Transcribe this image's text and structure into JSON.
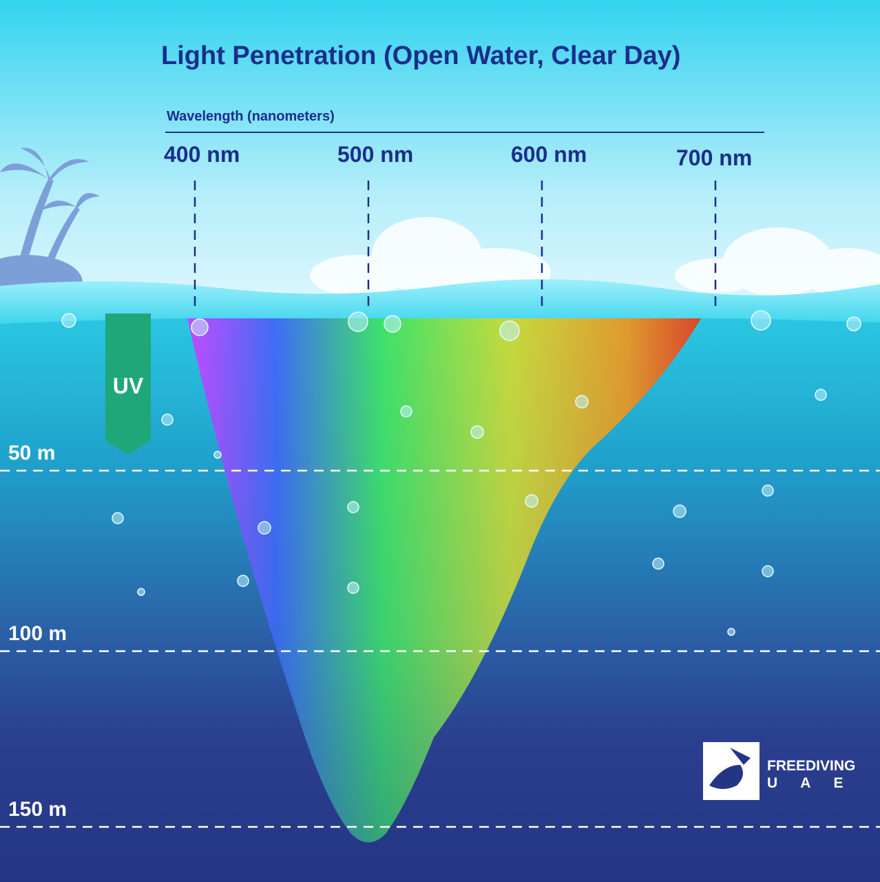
{
  "title": "Light Penetration (Open Water, Clear Day)",
  "x_axis": {
    "label": "Wavelength (nanometers)",
    "ticks": [
      "400 nm",
      "500 nm",
      "600 nm",
      "700 nm"
    ]
  },
  "uv_label": "UV",
  "depth_labels": [
    "50 m",
    "100 m",
    "150 m"
  ],
  "logo": {
    "line1": "FREEDIVING",
    "line2": "U A E"
  }
}
